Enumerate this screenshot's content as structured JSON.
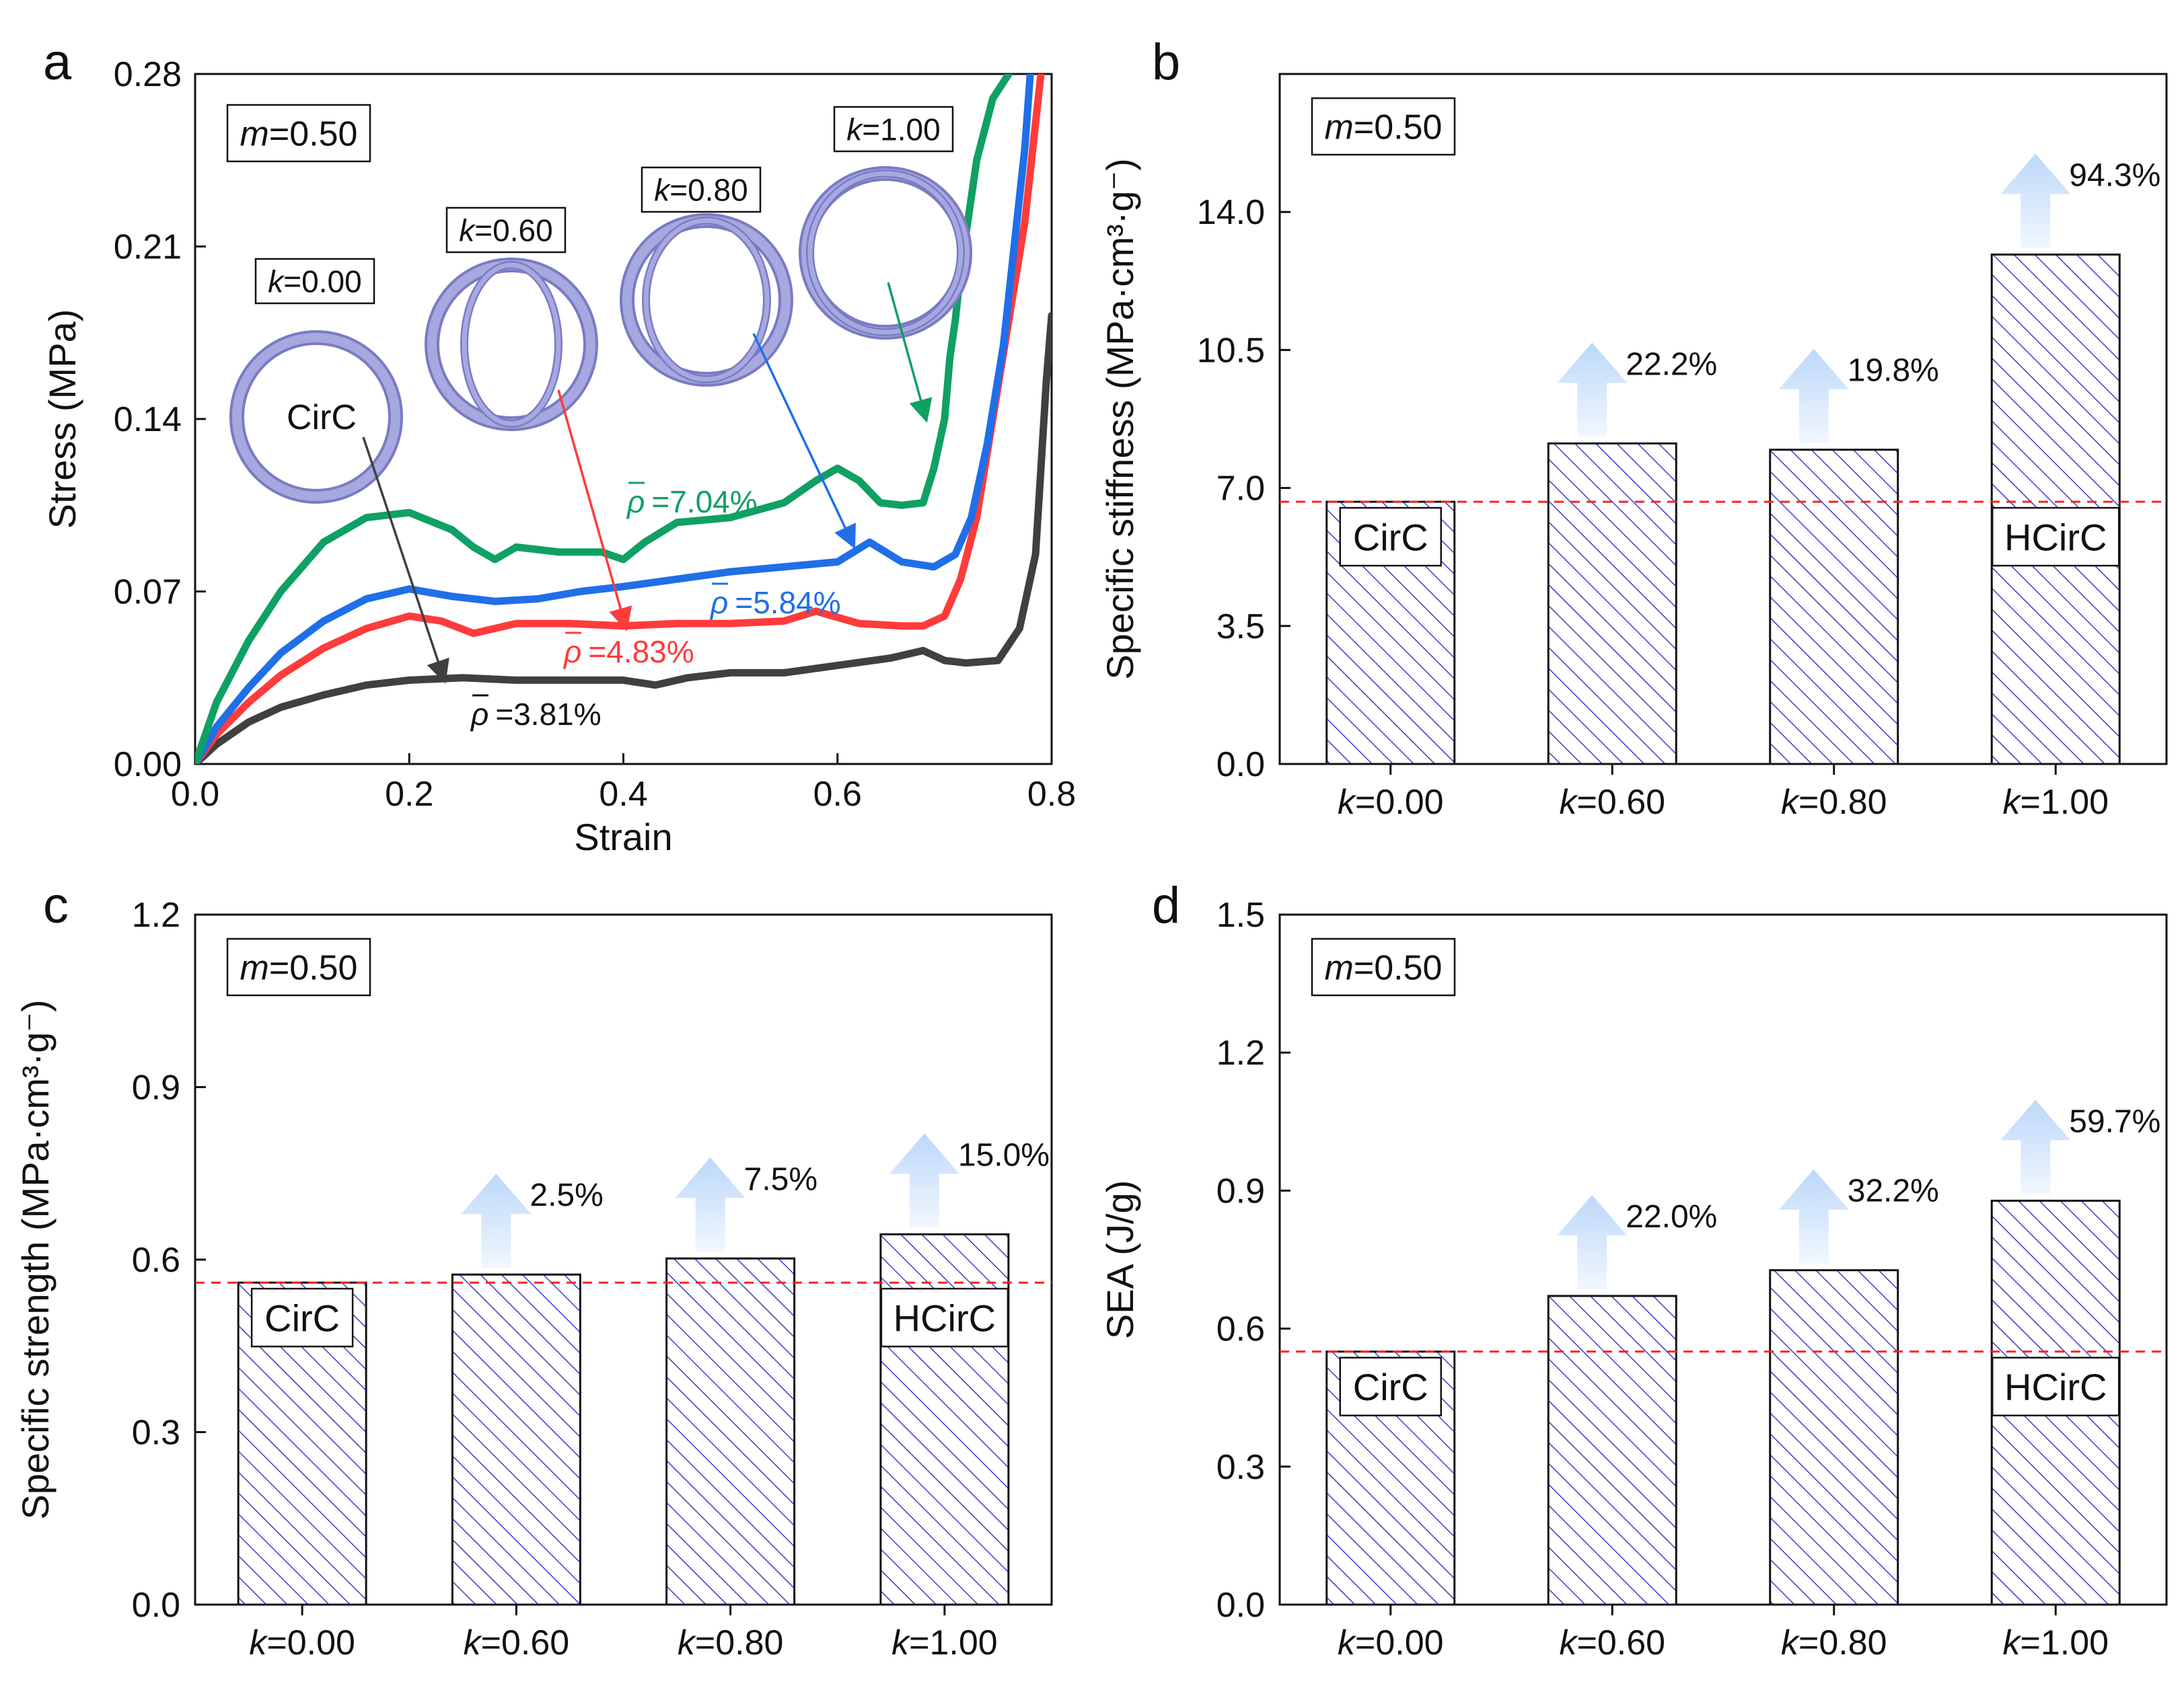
{
  "figure": {
    "colors": {
      "black_curve": "#404040",
      "red_curve": "#ff3b3b",
      "blue_curve": "#1f6fe8",
      "green_curve": "#10a064",
      "hatch": "#3d3dc8",
      "dashed": "#ff2020",
      "arrow_top": "#c8e0fb",
      "arrow_bottom": "#eef6fe",
      "ring": "#a7a8e0",
      "ring_dark": "#7a7bc2"
    }
  },
  "chart_data": [
    {
      "panel": "a",
      "type": "line",
      "xlabel": "Strain",
      "ylabel": "Stress (MPa)",
      "xlim": [
        0.0,
        0.8
      ],
      "ylim": [
        0.0,
        0.28
      ],
      "xticks": [
        "0.0",
        "0.2",
        "0.4",
        "0.6",
        "0.8"
      ],
      "yticks": [
        "0.00",
        "0.07",
        "0.14",
        "0.21",
        "0.28"
      ],
      "xtick_values": [
        0.0,
        0.2,
        0.4,
        0.6,
        0.8
      ],
      "ytick_values": [
        0.0,
        0.07,
        0.14,
        0.21,
        0.28
      ],
      "annotation_m": {
        "italic": "m",
        "rest": "=0.50"
      },
      "series": [
        {
          "name": "k=0.00",
          "color_key": "black_curve",
          "label": {
            "prefix": "ρ",
            "text": "=3.81%"
          },
          "x": [
            0.0,
            0.02,
            0.05,
            0.08,
            0.12,
            0.16,
            0.2,
            0.25,
            0.3,
            0.35,
            0.4,
            0.43,
            0.46,
            0.5,
            0.55,
            0.6,
            0.65,
            0.68,
            0.7,
            0.72,
            0.75,
            0.77,
            0.785,
            0.79,
            0.795,
            0.8
          ],
          "y": [
            0.0,
            0.008,
            0.017,
            0.023,
            0.028,
            0.032,
            0.034,
            0.035,
            0.034,
            0.034,
            0.034,
            0.032,
            0.035,
            0.037,
            0.037,
            0.04,
            0.043,
            0.046,
            0.042,
            0.041,
            0.042,
            0.055,
            0.085,
            0.12,
            0.155,
            0.182
          ]
        },
        {
          "name": "k=0.60",
          "color_key": "red_curve",
          "label": {
            "prefix": "ρ",
            "text": "=4.83%"
          },
          "x": [
            0.0,
            0.02,
            0.05,
            0.08,
            0.12,
            0.16,
            0.2,
            0.23,
            0.26,
            0.3,
            0.35,
            0.4,
            0.45,
            0.5,
            0.55,
            0.58,
            0.62,
            0.66,
            0.68,
            0.7,
            0.715,
            0.73,
            0.745,
            0.76,
            0.775,
            0.785,
            0.79
          ],
          "y": [
            0.0,
            0.012,
            0.025,
            0.036,
            0.047,
            0.055,
            0.06,
            0.058,
            0.053,
            0.057,
            0.057,
            0.056,
            0.057,
            0.057,
            0.058,
            0.062,
            0.057,
            0.056,
            0.056,
            0.06,
            0.075,
            0.1,
            0.14,
            0.18,
            0.22,
            0.26,
            0.28
          ]
        },
        {
          "name": "k=0.80",
          "color_key": "blue_curve",
          "label": {
            "prefix": "ρ",
            "text": "=5.84%"
          },
          "x": [
            0.0,
            0.02,
            0.05,
            0.08,
            0.12,
            0.16,
            0.2,
            0.24,
            0.28,
            0.32,
            0.36,
            0.4,
            0.45,
            0.5,
            0.55,
            0.6,
            0.63,
            0.66,
            0.69,
            0.71,
            0.725,
            0.74,
            0.755,
            0.765,
            0.775,
            0.78
          ],
          "y": [
            0.0,
            0.015,
            0.031,
            0.045,
            0.058,
            0.067,
            0.071,
            0.068,
            0.066,
            0.067,
            0.07,
            0.072,
            0.075,
            0.078,
            0.08,
            0.082,
            0.09,
            0.082,
            0.08,
            0.085,
            0.1,
            0.13,
            0.17,
            0.21,
            0.25,
            0.28
          ]
        },
        {
          "name": "k=1.00",
          "color_key": "green_curve",
          "label": {
            "prefix": "ρ",
            "text": "=7.04%"
          },
          "x": [
            0.0,
            0.02,
            0.05,
            0.08,
            0.12,
            0.16,
            0.2,
            0.24,
            0.26,
            0.28,
            0.3,
            0.34,
            0.38,
            0.4,
            0.42,
            0.45,
            0.5,
            0.55,
            0.58,
            0.6,
            0.62,
            0.64,
            0.66,
            0.68,
            0.69,
            0.7,
            0.705,
            0.71,
            0.715,
            0.72,
            0.73,
            0.745,
            0.76
          ],
          "y": [
            0.0,
            0.025,
            0.05,
            0.07,
            0.09,
            0.1,
            0.102,
            0.095,
            0.088,
            0.083,
            0.088,
            0.086,
            0.086,
            0.083,
            0.09,
            0.098,
            0.1,
            0.106,
            0.115,
            0.12,
            0.115,
            0.106,
            0.105,
            0.106,
            0.12,
            0.14,
            0.165,
            0.18,
            0.2,
            0.215,
            0.245,
            0.27,
            0.28
          ]
        }
      ],
      "insets": [
        {
          "k_italic": "k",
          "k_rest": "=0.00",
          "inner_rings": 0,
          "caption": "CirC"
        },
        {
          "k_italic": "k",
          "k_rest": "=0.60",
          "inner_rings": 2
        },
        {
          "k_italic": "k",
          "k_rest": "=0.80",
          "inner_rings": 2
        },
        {
          "k_italic": "k",
          "k_rest": "=1.00",
          "inner_rings": 2
        }
      ]
    },
    {
      "panel": "b",
      "type": "bar",
      "ylabel": "Specific stiffness (MPa·cm³·g⁻)",
      "ylim": [
        0.0,
        17.5
      ],
      "yticks": [
        "0.0",
        "3.5",
        "7.0",
        "10.5",
        "14.0"
      ],
      "ytick_values": [
        0.0,
        3.5,
        7.0,
        10.5,
        14.0
      ],
      "categories_italic": [
        "k",
        "k",
        "k",
        "k"
      ],
      "categories": [
        "=0.00",
        "=0.60",
        "=0.80",
        "=1.00"
      ],
      "values": [
        6.65,
        8.13,
        7.97,
        12.92
      ],
      "baseline": 6.65,
      "increases": [
        "",
        "22.2%",
        "19.8%",
        "94.3%"
      ],
      "bar_labels": [
        "CirC",
        "",
        "",
        "HCirC"
      ],
      "annotation_m": {
        "italic": "m",
        "rest": "=0.50"
      }
    },
    {
      "panel": "c",
      "type": "bar",
      "ylabel": "Specific strength (MPa·cm³·g⁻)",
      "ylim": [
        0.0,
        1.2
      ],
      "yticks": [
        "0.0",
        "0.3",
        "0.6",
        "0.9",
        "1.2"
      ],
      "ytick_values": [
        0.0,
        0.3,
        0.6,
        0.9,
        1.2
      ],
      "categories_italic": [
        "k",
        "k",
        "k",
        "k"
      ],
      "categories": [
        "=0.00",
        "=0.60",
        "=0.80",
        "=1.00"
      ],
      "values": [
        0.56,
        0.574,
        0.602,
        0.644
      ],
      "baseline": 0.56,
      "increases": [
        "",
        "2.5%",
        "7.5%",
        "15.0%"
      ],
      "bar_labels": [
        "CirC",
        "",
        "",
        "HCirC"
      ],
      "annotation_m": {
        "italic": "m",
        "rest": "=0.50"
      }
    },
    {
      "panel": "d",
      "type": "bar",
      "ylabel": "SEA (J/g)",
      "ylim": [
        0.0,
        1.5
      ],
      "yticks": [
        "0.0",
        "0.3",
        "0.6",
        "0.9",
        "1.2",
        "1.5"
      ],
      "ytick_values": [
        0.0,
        0.3,
        0.6,
        0.9,
        1.2,
        1.5
      ],
      "categories_italic": [
        "k",
        "k",
        "k",
        "k"
      ],
      "categories": [
        "=0.00",
        "=0.60",
        "=0.80",
        "=1.00"
      ],
      "values": [
        0.55,
        0.671,
        0.727,
        0.878
      ],
      "baseline": 0.55,
      "increases": [
        "",
        "22.0%",
        "32.2%",
        "59.7%"
      ],
      "bar_labels": [
        "CirC",
        "",
        "",
        "HCirC"
      ],
      "annotation_m": {
        "italic": "m",
        "rest": "=0.50"
      }
    }
  ]
}
